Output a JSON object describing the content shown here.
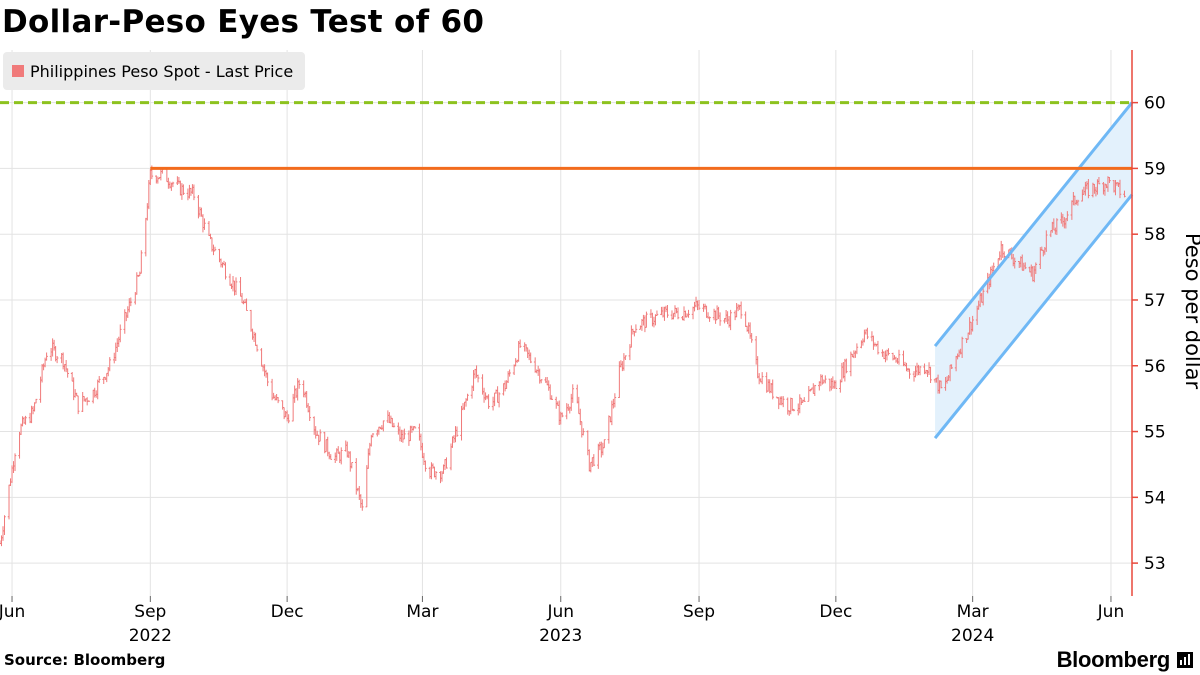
{
  "title": "Dollar-Peso Eyes Test of 60",
  "source": "Source: Bloomberg",
  "brand": "Bloomberg",
  "brand_icon": "bloomberg-terminal-icon",
  "legend": {
    "items": [
      {
        "label": "Philippines Peso Spot - Last Price",
        "color": "#f07a7a"
      }
    ],
    "placement": "top-left"
  },
  "chart_data": {
    "type": "line",
    "style": "ohlc-bars",
    "ylabel": "Peso per dollar",
    "ylim": [
      52.5,
      60.8
    ],
    "yticks": [
      53,
      54,
      55,
      56,
      57,
      58,
      59,
      60
    ],
    "x_range": [
      "2022-05-24",
      "2024-06-15"
    ],
    "grid": true,
    "x_month_ticks": [
      {
        "date": "2022-06-01",
        "label": "Jun"
      },
      {
        "date": "2022-09-01",
        "label": "Sep"
      },
      {
        "date": "2022-12-01",
        "label": "Dec"
      },
      {
        "date": "2023-03-01",
        "label": "Mar"
      },
      {
        "date": "2023-06-01",
        "label": "Jun"
      },
      {
        "date": "2023-09-01",
        "label": "Sep"
      },
      {
        "date": "2023-12-01",
        "label": "Dec"
      },
      {
        "date": "2024-03-01",
        "label": "Mar"
      },
      {
        "date": "2024-06-01",
        "label": "Jun"
      }
    ],
    "x_year_labels": [
      {
        "date": "2022-09-01",
        "label": "2022"
      },
      {
        "date": "2023-06-01",
        "label": "2023"
      },
      {
        "date": "2024-03-01",
        "label": "2024"
      }
    ],
    "series": [
      {
        "name": "Philippines Peso Spot - Last Price",
        "color": "#f07a7a",
        "x": [
          "2022-05-24",
          "2022-06-05",
          "2022-06-15",
          "2022-06-25",
          "2022-07-05",
          "2022-07-15",
          "2022-07-25",
          "2022-08-05",
          "2022-08-15",
          "2022-08-25",
          "2022-09-01",
          "2022-09-10",
          "2022-09-20",
          "2022-09-30",
          "2022-10-10",
          "2022-10-20",
          "2022-11-01",
          "2022-11-10",
          "2022-11-20",
          "2022-12-01",
          "2022-12-10",
          "2022-12-20",
          "2023-01-01",
          "2023-01-10",
          "2023-01-20",
          "2023-01-26",
          "2023-02-05",
          "2023-02-15",
          "2023-02-25",
          "2023-03-05",
          "2023-03-15",
          "2023-03-25",
          "2023-04-05",
          "2023-04-15",
          "2023-04-25",
          "2023-05-05",
          "2023-05-15",
          "2023-05-25",
          "2023-06-01",
          "2023-06-10",
          "2023-06-20",
          "2023-06-30",
          "2023-07-10",
          "2023-07-20",
          "2023-07-30",
          "2023-08-10",
          "2023-08-20",
          "2023-08-30",
          "2023-09-10",
          "2023-09-20",
          "2023-09-30",
          "2023-10-10",
          "2023-10-20",
          "2023-10-30",
          "2023-11-10",
          "2023-11-20",
          "2023-11-30",
          "2023-12-10",
          "2023-12-20",
          "2024-01-01",
          "2024-01-10",
          "2024-01-20",
          "2024-01-30",
          "2024-02-10",
          "2024-02-20",
          "2024-03-01",
          "2024-03-10",
          "2024-03-20",
          "2024-03-30",
          "2024-04-10",
          "2024-04-20",
          "2024-04-30",
          "2024-05-10",
          "2024-05-20",
          "2024-05-30",
          "2024-06-10"
        ],
        "values": [
          53.3,
          55.0,
          55.3,
          56.3,
          56.1,
          55.4,
          55.6,
          56.0,
          56.7,
          57.4,
          58.9,
          58.9,
          58.7,
          58.6,
          57.9,
          57.5,
          57.0,
          56.4,
          55.6,
          55.2,
          55.8,
          55.0,
          54.6,
          54.7,
          53.8,
          55.0,
          55.2,
          54.9,
          55.0,
          54.4,
          54.4,
          55.1,
          55.9,
          55.4,
          55.7,
          56.3,
          56.0,
          55.6,
          55.2,
          55.6,
          54.5,
          54.8,
          55.9,
          56.6,
          56.7,
          56.8,
          56.8,
          56.9,
          56.8,
          56.7,
          56.9,
          55.9,
          55.6,
          55.4,
          55.4,
          55.8,
          55.7,
          56.1,
          56.5,
          56.2,
          56.1,
          55.9,
          56.0,
          55.6,
          56.2,
          56.7,
          57.2,
          57.8,
          57.6,
          57.4,
          58.0,
          58.2,
          58.6,
          58.7,
          58.8,
          58.6
        ]
      }
    ],
    "reference_lines": [
      {
        "y": 60,
        "color": "#8dc21f",
        "style": "dashed"
      },
      {
        "y": 59,
        "color": "#f26b1d",
        "style": "solid",
        "from": "2022-09-01"
      }
    ],
    "channel": {
      "color": "#6fb8f5",
      "fill": "#e3f1fc",
      "start": "2024-02-05",
      "end": "2024-06-15",
      "upper": [
        56.3,
        60.0
      ],
      "lower": [
        54.9,
        58.6
      ]
    }
  }
}
